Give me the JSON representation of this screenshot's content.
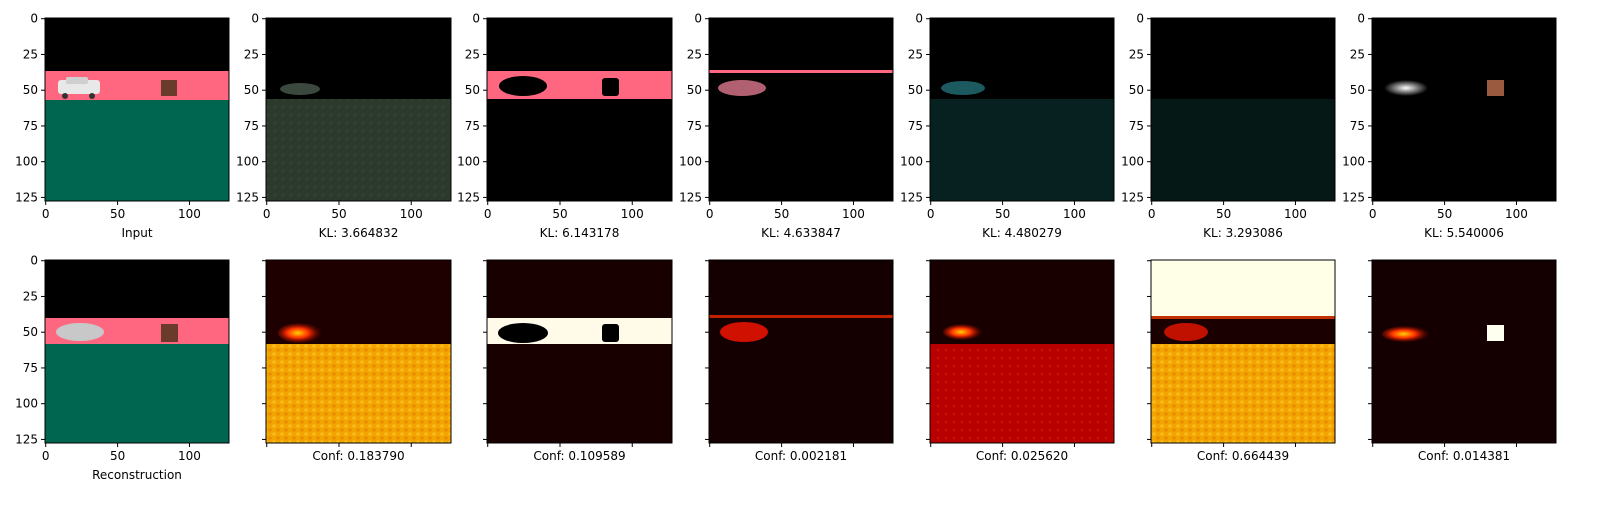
{
  "figure": {
    "columns": 7,
    "rows": 2,
    "tick_labels_y": [
      "0",
      "25",
      "50",
      "75",
      "100",
      "125"
    ],
    "tick_values_y": [
      0,
      25,
      50,
      75,
      100,
      125
    ],
    "tick_labels_x": [
      "0",
      "50",
      "100"
    ],
    "tick_values_x": [
      0,
      50,
      100
    ],
    "image_size": 128
  },
  "top_row": {
    "captions": [
      "Input",
      "KL: 3.664832",
      "KL: 6.143178",
      "KL: 4.633847",
      "KL: 4.480279",
      "KL: 3.293086",
      "KL: 5.540006"
    ]
  },
  "bottom_row": {
    "captions": [
      "Reconstruction",
      "Conf: 0.183790",
      "Conf: 0.109589",
      "Conf: 0.002181",
      "Conf: 0.025620",
      "Conf: 0.664439",
      "Conf: 0.014381"
    ]
  },
  "colors": {
    "road_pink": "#ff6680",
    "ground_green": "#006650",
    "heat_dark": "#1a0000",
    "heat_red": "#c00000",
    "heat_orange": "#f5a000",
    "heat_white": "#fffde0"
  }
}
